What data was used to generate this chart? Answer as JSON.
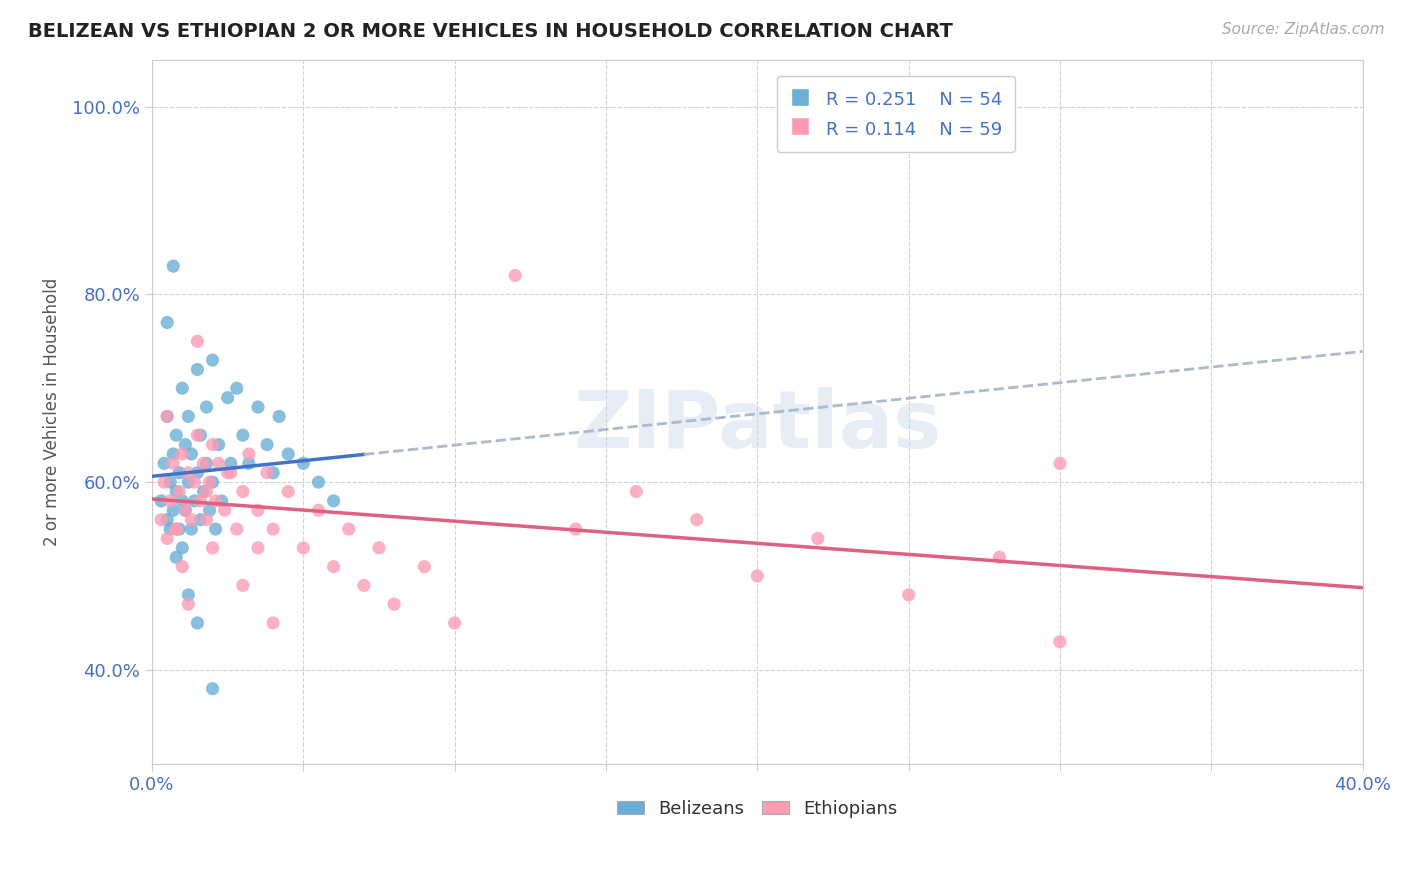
{
  "title": "BELIZEAN VS ETHIOPIAN 2 OR MORE VEHICLES IN HOUSEHOLD CORRELATION CHART",
  "source": "Source: ZipAtlas.com",
  "ylabel": "2 or more Vehicles in Household",
  "xlim": [
    0.0,
    0.4
  ],
  "ylim": [
    0.3,
    1.05
  ],
  "xticks": [
    0.0,
    0.05,
    0.1,
    0.15,
    0.2,
    0.25,
    0.3,
    0.35,
    0.4
  ],
  "xticklabels": [
    "0.0%",
    "",
    "",
    "",
    "",
    "",
    "",
    "",
    "40.0%"
  ],
  "yticks": [
    0.4,
    0.6,
    0.8,
    1.0
  ],
  "yticklabels": [
    "40.0%",
    "60.0%",
    "80.0%",
    "100.0%"
  ],
  "legend_r1": "0.251",
  "legend_n1": "54",
  "legend_r2": "0.114",
  "legend_n2": "59",
  "belizean_color": "#6baed6",
  "ethiopian_color": "#fc9cb4",
  "trend_color_belizean": "#4472c4",
  "trend_color_ethiopian": "#e06080",
  "trend_dashed_color": "#aabbcc",
  "watermark": "ZIPatlas",
  "background_color": "#ffffff",
  "bel_x_data": [
    0.003,
    0.004,
    0.005,
    0.005,
    0.006,
    0.006,
    0.007,
    0.007,
    0.008,
    0.008,
    0.008,
    0.009,
    0.009,
    0.01,
    0.01,
    0.01,
    0.011,
    0.011,
    0.012,
    0.012,
    0.013,
    0.013,
    0.014,
    0.015,
    0.015,
    0.016,
    0.016,
    0.017,
    0.018,
    0.018,
    0.019,
    0.02,
    0.02,
    0.021,
    0.022,
    0.023,
    0.025,
    0.026,
    0.028,
    0.03,
    0.032,
    0.035,
    0.038,
    0.04,
    0.042,
    0.045,
    0.05,
    0.055,
    0.06,
    0.005,
    0.007,
    0.012,
    0.015,
    0.02
  ],
  "bel_y_data": [
    0.58,
    0.62,
    0.56,
    0.67,
    0.6,
    0.55,
    0.63,
    0.57,
    0.65,
    0.59,
    0.52,
    0.61,
    0.55,
    0.7,
    0.58,
    0.53,
    0.64,
    0.57,
    0.67,
    0.6,
    0.55,
    0.63,
    0.58,
    0.72,
    0.61,
    0.56,
    0.65,
    0.59,
    0.68,
    0.62,
    0.57,
    0.73,
    0.6,
    0.55,
    0.64,
    0.58,
    0.69,
    0.62,
    0.7,
    0.65,
    0.62,
    0.68,
    0.64,
    0.61,
    0.67,
    0.63,
    0.62,
    0.6,
    0.58,
    0.77,
    0.83,
    0.48,
    0.45,
    0.38
  ],
  "eth_x_data": [
    0.003,
    0.004,
    0.005,
    0.006,
    0.007,
    0.008,
    0.009,
    0.01,
    0.011,
    0.012,
    0.013,
    0.014,
    0.015,
    0.016,
    0.017,
    0.018,
    0.019,
    0.02,
    0.021,
    0.022,
    0.024,
    0.026,
    0.028,
    0.03,
    0.032,
    0.035,
    0.038,
    0.04,
    0.045,
    0.05,
    0.055,
    0.06,
    0.065,
    0.07,
    0.075,
    0.08,
    0.09,
    0.1,
    0.12,
    0.14,
    0.16,
    0.18,
    0.2,
    0.22,
    0.25,
    0.28,
    0.3,
    0.005,
    0.008,
    0.01,
    0.012,
    0.015,
    0.018,
    0.02,
    0.025,
    0.03,
    0.035,
    0.04,
    0.3
  ],
  "eth_y_data": [
    0.56,
    0.6,
    0.54,
    0.58,
    0.62,
    0.55,
    0.59,
    0.63,
    0.57,
    0.61,
    0.56,
    0.6,
    0.75,
    0.58,
    0.62,
    0.56,
    0.6,
    0.64,
    0.58,
    0.62,
    0.57,
    0.61,
    0.55,
    0.59,
    0.63,
    0.57,
    0.61,
    0.55,
    0.59,
    0.53,
    0.57,
    0.51,
    0.55,
    0.49,
    0.53,
    0.47,
    0.51,
    0.45,
    0.82,
    0.55,
    0.59,
    0.56,
    0.5,
    0.54,
    0.48,
    0.52,
    0.62,
    0.67,
    0.55,
    0.51,
    0.47,
    0.65,
    0.59,
    0.53,
    0.61,
    0.49,
    0.53,
    0.45,
    0.43
  ]
}
